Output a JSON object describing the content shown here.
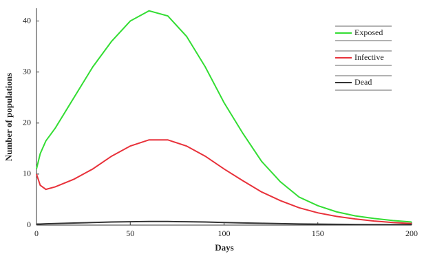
{
  "chart_data": {
    "type": "line",
    "xlabel": "Days",
    "ylabel": "Number of populations",
    "x": [
      0,
      2,
      5,
      10,
      20,
      30,
      40,
      50,
      60,
      70,
      80,
      90,
      100,
      110,
      120,
      130,
      140,
      150,
      160,
      170,
      180,
      190,
      200
    ],
    "series": [
      {
        "name": "Exposed",
        "color": "#33dd33",
        "values": [
          11,
          14,
          16.5,
          19,
          25,
          31,
          36,
          40,
          42,
          41,
          37,
          31,
          24,
          18,
          12.5,
          8.5,
          5.5,
          3.8,
          2.6,
          1.8,
          1.3,
          0.9,
          0.6
        ]
      },
      {
        "name": "Infective",
        "color": "#e8313a",
        "values": [
          10,
          7.8,
          7,
          7.5,
          9,
          11,
          13.5,
          15.5,
          16.7,
          16.7,
          15.5,
          13.5,
          11,
          8.7,
          6.5,
          4.8,
          3.4,
          2.4,
          1.7,
          1.2,
          0.8,
          0.5,
          0.3
        ]
      },
      {
        "name": "Dead",
        "color": "#333333",
        "values": [
          0.2,
          0.2,
          0.25,
          0.3,
          0.4,
          0.5,
          0.6,
          0.65,
          0.7,
          0.7,
          0.65,
          0.6,
          0.5,
          0.42,
          0.35,
          0.28,
          0.22,
          0.18,
          0.15,
          0.12,
          0.1,
          0.1,
          0.1
        ]
      }
    ],
    "xlim": [
      0,
      200
    ],
    "ylim": [
      0,
      42.5
    ],
    "xticks": [
      0,
      50,
      100,
      150,
      200
    ],
    "yticks": [
      0,
      10,
      20,
      30,
      40
    ],
    "grid": false,
    "legend": "upper right"
  }
}
